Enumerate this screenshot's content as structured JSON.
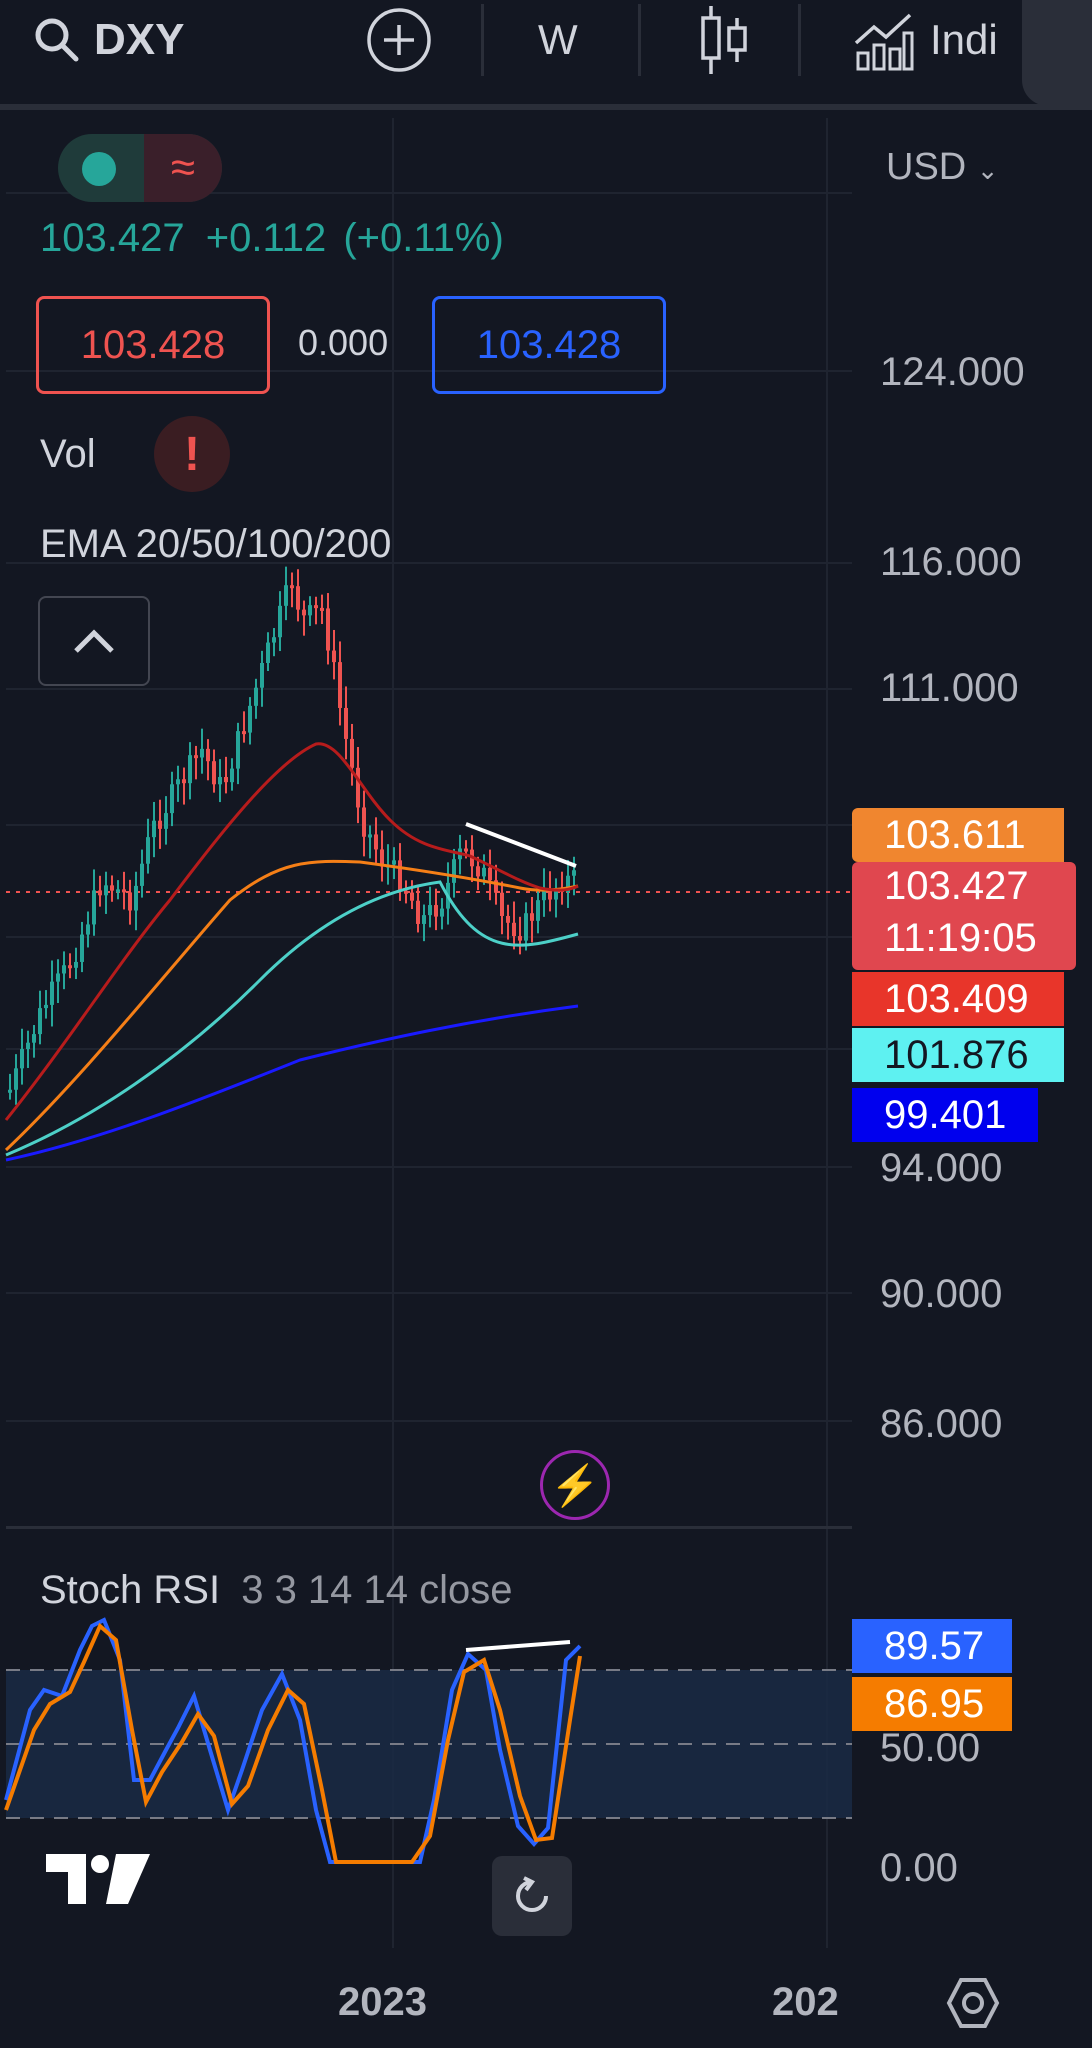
{
  "toolbar": {
    "symbol": "DXY",
    "interval": "W",
    "indicators_label": "Indi"
  },
  "legend": {
    "price": "103.427",
    "change": "+0.112",
    "change_pct": "(+0.11%)",
    "bid": "103.428",
    "spread": "0.000",
    "ask": "103.428",
    "volume_label": "Vol",
    "ema_label": "EMA 20/50/100/200"
  },
  "price_axis": {
    "currency": "USD",
    "ticks": [
      "124.000",
      "116.000",
      "111.000",
      "94.000",
      "90.000",
      "86.000"
    ]
  },
  "price_tags": {
    "ema_orange": "103.611",
    "last_price": "103.427",
    "countdown": "11:19:05",
    "ema_red": "103.409",
    "ema_teal": "101.876",
    "ema_blue": "99.401"
  },
  "stoch": {
    "label": "Stoch RSI",
    "params": "3 3 14 14 close",
    "k_value": "89.57",
    "d_value": "86.95",
    "ticks": [
      "50.00",
      "0.00"
    ]
  },
  "time_axis": {
    "labels": [
      "2023",
      "202"
    ]
  },
  "colors": {
    "bg": "#131722",
    "up": "#26a69a",
    "down": "#ef5350",
    "ema20": "#b71c1c",
    "ema50": "#f57f17",
    "ema100": "#4dd0c8",
    "ema200": "#1a1aff",
    "stoch_k": "#2962ff",
    "stoch_d": "#f57c00"
  }
}
